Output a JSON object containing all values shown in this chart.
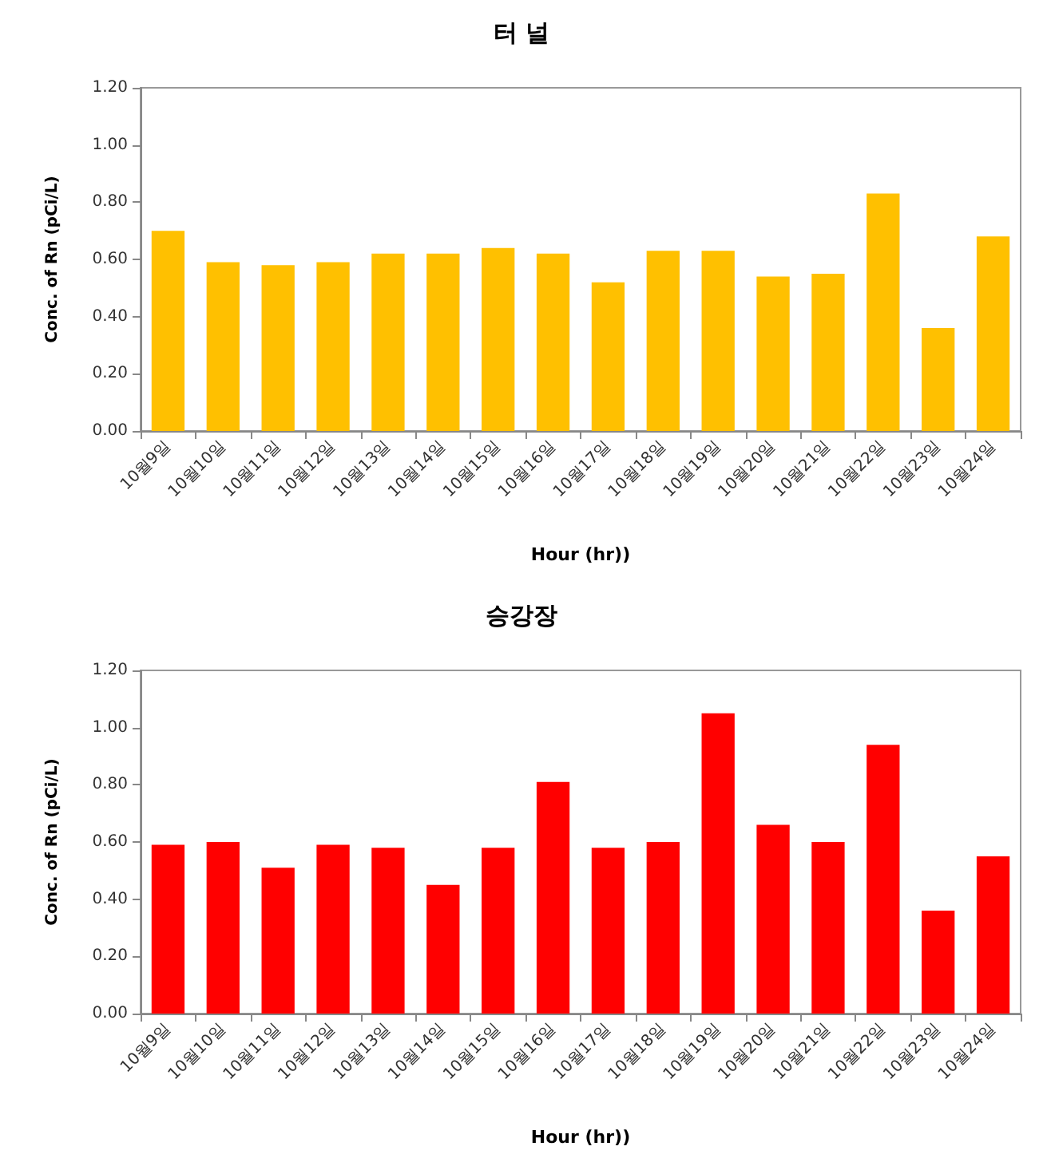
{
  "chart_data": [
    {
      "type": "bar",
      "title": "터 널",
      "xlabel": "Hour (hr))",
      "ylabel": "Conc. of Rn (pCi/L)",
      "categories": [
        "10월9일",
        "10월10일",
        "10월11일",
        "10월12일",
        "10월13일",
        "10월14일",
        "10월15일",
        "10월16일",
        "10월17일",
        "10월18일",
        "10월19일",
        "10월20일",
        "10월21일",
        "10월22일",
        "10월23일",
        "10월24일"
      ],
      "values": [
        0.7,
        0.59,
        0.58,
        0.59,
        0.62,
        0.62,
        0.64,
        0.62,
        0.52,
        0.63,
        0.63,
        0.54,
        0.55,
        0.83,
        0.36,
        0.68
      ],
      "color": "#ffc000",
      "ylim": [
        0,
        1.2
      ],
      "yticks": [
        {
          "value": 0,
          "label": "0.00"
        },
        {
          "value": 0.2,
          "label": "0.20"
        },
        {
          "value": 0.4,
          "label": "0.40"
        },
        {
          "value": 0.6,
          "label": "0.60"
        },
        {
          "value": 0.8,
          "label": "0.80"
        },
        {
          "value": 1.0,
          "label": "1.00"
        },
        {
          "value": 1.2,
          "label": "1.20"
        }
      ],
      "grid": false
    },
    {
      "type": "bar",
      "title": "승강장",
      "xlabel": "Hour (hr))",
      "ylabel": "Conc. of Rn (pCi/L)",
      "categories": [
        "10월9일",
        "10월10일",
        "10월11일",
        "10월12일",
        "10월13일",
        "10월14일",
        "10월15일",
        "10월16일",
        "10월17일",
        "10월18일",
        "10월19일",
        "10월20일",
        "10월21일",
        "10월22일",
        "10월23일",
        "10월24일"
      ],
      "values": [
        0.59,
        0.6,
        0.51,
        0.59,
        0.58,
        0.45,
        0.58,
        0.81,
        0.58,
        0.6,
        1.05,
        0.66,
        0.6,
        0.94,
        0.36,
        0.55
      ],
      "color": "#ff0000",
      "ylim": [
        0,
        1.2
      ],
      "yticks": [
        {
          "value": 0,
          "label": "0.00"
        },
        {
          "value": 0.2,
          "label": "0.20"
        },
        {
          "value": 0.4,
          "label": "0.40"
        },
        {
          "value": 0.6,
          "label": "0.60"
        },
        {
          "value": 0.8,
          "label": "0.80"
        },
        {
          "value": 1.0,
          "label": "1.00"
        },
        {
          "value": 1.2,
          "label": "1.20"
        }
      ],
      "grid": false
    }
  ]
}
